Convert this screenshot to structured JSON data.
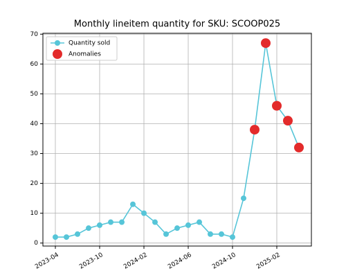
{
  "chart_data": {
    "type": "line",
    "title": "Monthly lineitem quantity for SKU: SCOOP025",
    "categories": [
      "2023-04",
      null,
      null,
      null,
      "2023-10",
      null,
      null,
      null,
      "2024-02",
      null,
      null,
      null,
      "2024-06",
      null,
      null,
      null,
      "2024-10",
      null,
      null,
      null,
      "2025-02",
      null,
      null
    ],
    "series": [
      {
        "name": "Quantity sold",
        "color": "#56c5d8",
        "values": [
          2,
          2,
          3,
          5,
          6,
          7,
          7,
          13,
          10,
          7,
          3,
          5,
          6,
          7,
          3,
          3,
          2,
          15,
          38,
          67,
          46,
          41,
          32
        ]
      },
      {
        "name": "Anomalies",
        "color": "#e32b2b",
        "values": [
          null,
          null,
          null,
          null,
          null,
          null,
          null,
          null,
          null,
          null,
          null,
          null,
          null,
          null,
          null,
          null,
          null,
          null,
          38,
          67,
          46,
          41,
          32
        ]
      }
    ],
    "ylim": [
      -1,
      70.3
    ],
    "yticks": [
      0,
      10,
      20,
      30,
      40,
      50,
      60,
      70
    ],
    "grid": true,
    "legend": "upper left"
  }
}
